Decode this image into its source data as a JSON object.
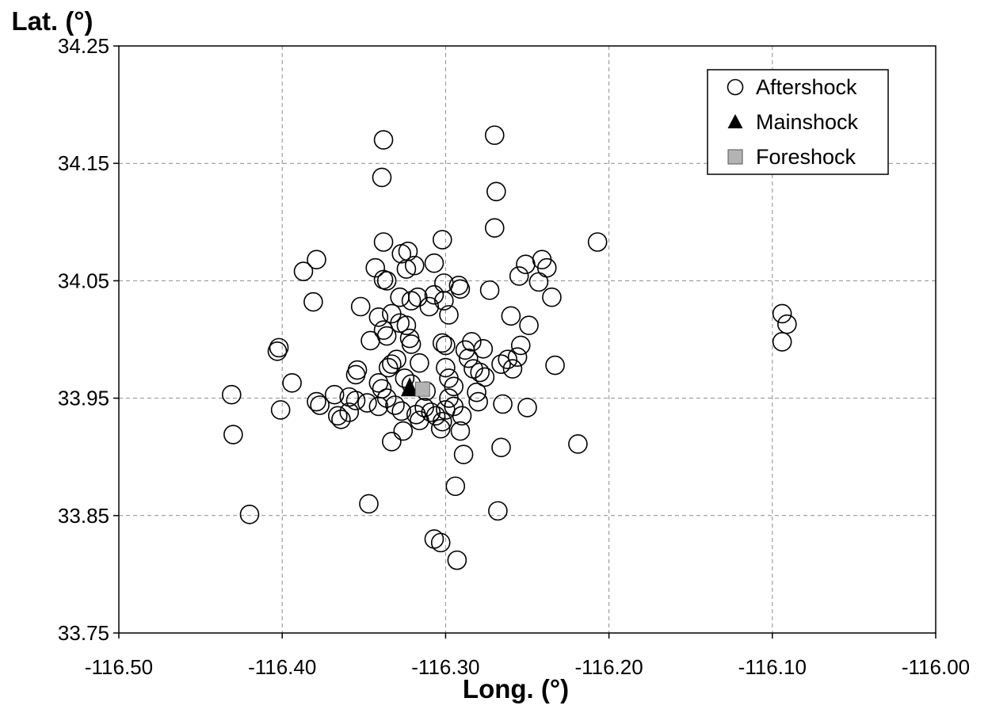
{
  "chart_data": {
    "type": "scatter",
    "xlabel": "Long. (°)",
    "ylabel": "Lat. (°)",
    "xlim": [
      -116.5,
      -116.0
    ],
    "ylim": [
      33.75,
      34.25
    ],
    "x_ticks": [
      "-116.50",
      "-116.40",
      "-116.30",
      "-116.20",
      "-116.10",
      "-116.00"
    ],
    "y_ticks": [
      "33.75",
      "33.85",
      "33.95",
      "34.05",
      "34.15",
      "34.25"
    ],
    "grid": true,
    "legend_position": "top-right",
    "series": [
      {
        "name": "Aftershock",
        "marker": "open-circle",
        "color": "#000000",
        "points": [
          [
            -116.27,
            34.174
          ],
          [
            -116.338,
            34.17
          ],
          [
            -116.339,
            34.138
          ],
          [
            -116.269,
            34.126
          ],
          [
            -116.27,
            34.095
          ],
          [
            -116.207,
            34.083
          ],
          [
            -116.302,
            34.085
          ],
          [
            -116.338,
            34.083
          ],
          [
            -116.379,
            34.068
          ],
          [
            -116.387,
            34.058
          ],
          [
            -116.343,
            34.061
          ],
          [
            -116.323,
            34.075
          ],
          [
            -116.327,
            34.073
          ],
          [
            -116.319,
            34.063
          ],
          [
            -116.324,
            34.06
          ],
          [
            -116.307,
            34.065
          ],
          [
            -116.241,
            34.068
          ],
          [
            -116.238,
            34.061
          ],
          [
            -116.251,
            34.064
          ],
          [
            -116.255,
            34.054
          ],
          [
            -116.243,
            34.049
          ],
          [
            -116.336,
            34.05
          ],
          [
            -116.338,
            34.051
          ],
          [
            -116.301,
            34.048
          ],
          [
            -116.292,
            34.046
          ],
          [
            -116.291,
            34.043
          ],
          [
            -116.273,
            34.042
          ],
          [
            -116.381,
            34.032
          ],
          [
            -116.352,
            34.028
          ],
          [
            -116.328,
            34.036
          ],
          [
            -116.321,
            34.033
          ],
          [
            -116.317,
            34.036
          ],
          [
            -116.307,
            34.038
          ],
          [
            -116.301,
            34.033
          ],
          [
            -116.31,
            34.028
          ],
          [
            -116.298,
            34.021
          ],
          [
            -116.235,
            34.036
          ],
          [
            -116.26,
            34.02
          ],
          [
            -116.249,
            34.012
          ],
          [
            -116.341,
            34.019
          ],
          [
            -116.333,
            34.022
          ],
          [
            -116.328,
            34.014
          ],
          [
            -116.324,
            34.012
          ],
          [
            -116.338,
            34.008
          ],
          [
            -116.336,
            34.003
          ],
          [
            -116.346,
            33.999
          ],
          [
            -116.322,
            34.001
          ],
          [
            -116.321,
            33.996
          ],
          [
            -116.302,
            33.997
          ],
          [
            -116.3,
            33.995
          ],
          [
            -116.284,
            33.998
          ],
          [
            -116.288,
            33.991
          ],
          [
            -116.277,
            33.992
          ],
          [
            -116.286,
            33.984
          ],
          [
            -116.254,
            33.995
          ],
          [
            -116.256,
            33.985
          ],
          [
            -116.262,
            33.983
          ],
          [
            -116.266,
            33.979
          ],
          [
            -116.259,
            33.975
          ],
          [
            -116.233,
            33.978
          ],
          [
            -116.402,
            33.993
          ],
          [
            -116.403,
            33.99
          ],
          [
            -116.33,
            33.983
          ],
          [
            -116.333,
            33.979
          ],
          [
            -116.335,
            33.976
          ],
          [
            -116.316,
            33.98
          ],
          [
            -116.3,
            33.976
          ],
          [
            -116.298,
            33.967
          ],
          [
            -116.283,
            33.975
          ],
          [
            -116.279,
            33.972
          ],
          [
            -116.276,
            33.968
          ],
          [
            -116.354,
            33.974
          ],
          [
            -116.355,
            33.97
          ],
          [
            -116.394,
            33.963
          ],
          [
            -116.341,
            33.963
          ],
          [
            -116.339,
            33.958
          ],
          [
            -116.325,
            33.967
          ],
          [
            -116.321,
            33.962
          ],
          [
            -116.312,
            33.956
          ],
          [
            -116.295,
            33.96
          ],
          [
            -116.298,
            33.95
          ],
          [
            -116.281,
            33.955
          ],
          [
            -116.28,
            33.947
          ],
          [
            -116.265,
            33.945
          ],
          [
            -116.25,
            33.942
          ],
          [
            -116.431,
            33.953
          ],
          [
            -116.368,
            33.953
          ],
          [
            -116.359,
            33.951
          ],
          [
            -116.355,
            33.948
          ],
          [
            -116.348,
            33.946
          ],
          [
            -116.341,
            33.943
          ],
          [
            -116.336,
            33.95
          ],
          [
            -116.331,
            33.944
          ],
          [
            -116.327,
            33.939
          ],
          [
            -116.318,
            33.936
          ],
          [
            -116.316,
            33.931
          ],
          [
            -116.313,
            33.942
          ],
          [
            -116.309,
            33.938
          ],
          [
            -116.306,
            33.935
          ],
          [
            -116.302,
            33.93
          ],
          [
            -116.3,
            33.94
          ],
          [
            -116.295,
            33.943
          ],
          [
            -116.29,
            33.935
          ],
          [
            -116.291,
            33.922
          ],
          [
            -116.303,
            33.924
          ],
          [
            -116.326,
            33.922
          ],
          [
            -116.333,
            33.913
          ],
          [
            -116.379,
            33.947
          ],
          [
            -116.377,
            33.944
          ],
          [
            -116.366,
            33.935
          ],
          [
            -116.364,
            33.932
          ],
          [
            -116.359,
            33.938
          ],
          [
            -116.401,
            33.94
          ],
          [
            -116.43,
            33.919
          ],
          [
            -116.289,
            33.902
          ],
          [
            -116.266,
            33.908
          ],
          [
            -116.219,
            33.911
          ],
          [
            -116.294,
            33.875
          ],
          [
            -116.347,
            33.86
          ],
          [
            -116.268,
            33.854
          ],
          [
            -116.42,
            33.851
          ],
          [
            -116.307,
            33.83
          ],
          [
            -116.303,
            33.827
          ],
          [
            -116.293,
            33.812
          ],
          [
            -116.094,
            34.022
          ],
          [
            -116.091,
            34.013
          ],
          [
            -116.094,
            33.998
          ]
        ]
      },
      {
        "name": "Mainshock",
        "marker": "filled-triangle",
        "color": "#000000",
        "points": [
          [
            -116.322,
            33.957
          ]
        ]
      },
      {
        "name": "Foreshock",
        "marker": "filled-square",
        "color": "#b3b3b3",
        "points": [
          [
            -116.318,
            33.957
          ]
        ]
      }
    ]
  },
  "legend": {
    "aftershock_label": "Aftershock",
    "mainshock_label": "Mainshock",
    "foreshock_label": "Foreshock"
  }
}
